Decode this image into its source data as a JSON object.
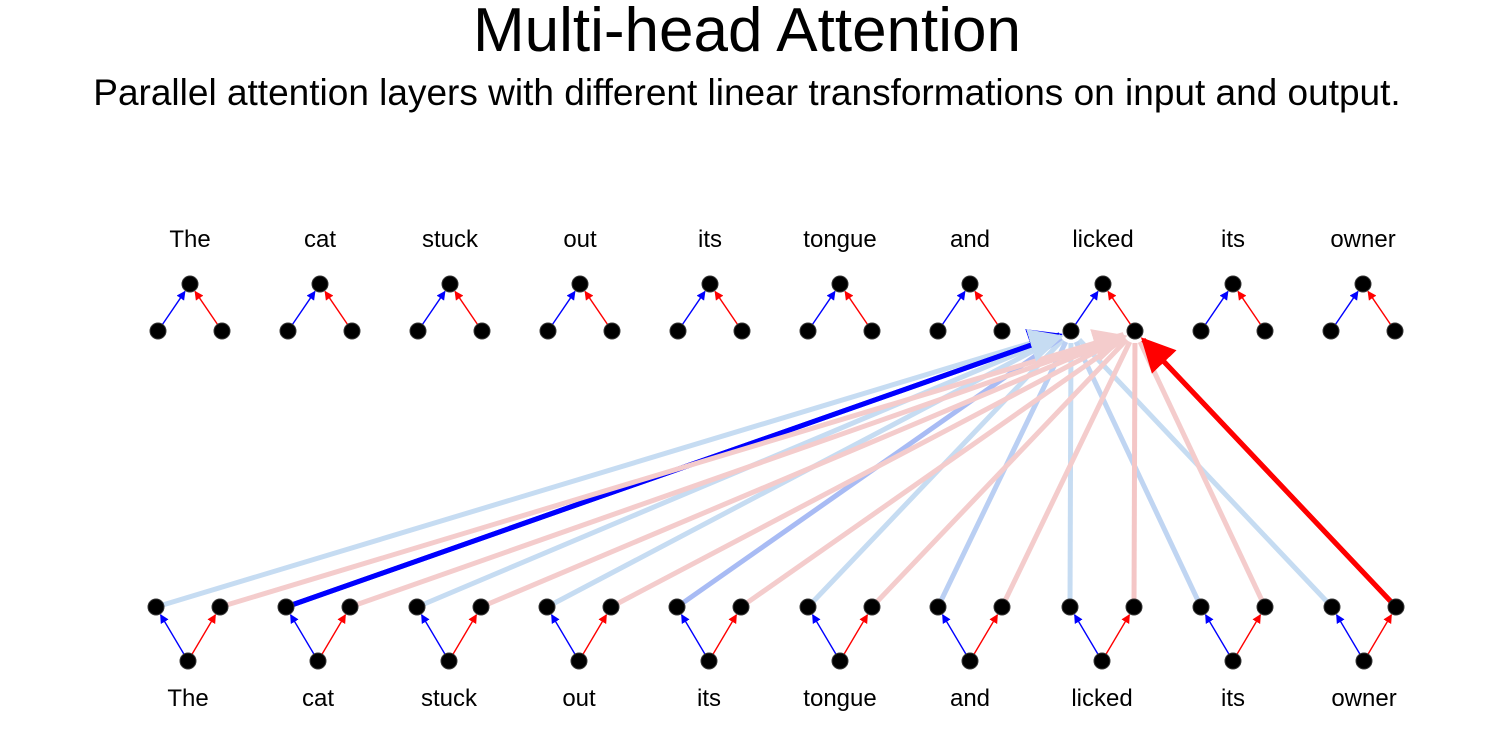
{
  "title": "Multi-head Attention",
  "subtitle": "Parallel attention layers with different linear transformations on input and output.",
  "top_words": [
    "The",
    "cat",
    "stuck",
    "out",
    "its",
    "tongue",
    "and",
    "licked",
    "its",
    "owner"
  ],
  "bottom_words": [
    "The",
    "cat",
    "stuck",
    "out",
    "its",
    "tongue",
    "and",
    "licked",
    "its",
    "owner"
  ],
  "colors": {
    "head_a": "#0000ff",
    "head_b": "#ff0000",
    "head_a_faint": "#c6dcf2",
    "head_b_faint": "#f4cccc",
    "node": "#000000"
  },
  "focus_word_index": 7,
  "attention": {
    "head_a": [
      {
        "from": 0,
        "weight": 0.2
      },
      {
        "from": 1,
        "weight": 1.0
      },
      {
        "from": 2,
        "weight": 0.2
      },
      {
        "from": 3,
        "weight": 0.2
      },
      {
        "from": 4,
        "weight": 0.45
      },
      {
        "from": 5,
        "weight": 0.2
      },
      {
        "from": 6,
        "weight": 0.3
      },
      {
        "from": 7,
        "weight": 0.2
      },
      {
        "from": 8,
        "weight": 0.25
      },
      {
        "from": 9,
        "weight": 0.2
      }
    ],
    "head_b": [
      {
        "from": 0,
        "weight": 0.2
      },
      {
        "from": 1,
        "weight": 0.2
      },
      {
        "from": 2,
        "weight": 0.2
      },
      {
        "from": 3,
        "weight": 0.2
      },
      {
        "from": 4,
        "weight": 0.2
      },
      {
        "from": 5,
        "weight": 0.2
      },
      {
        "from": 6,
        "weight": 0.2
      },
      {
        "from": 7,
        "weight": 0.25
      },
      {
        "from": 8,
        "weight": 0.2
      },
      {
        "from": 9,
        "weight": 1.0
      }
    ]
  }
}
